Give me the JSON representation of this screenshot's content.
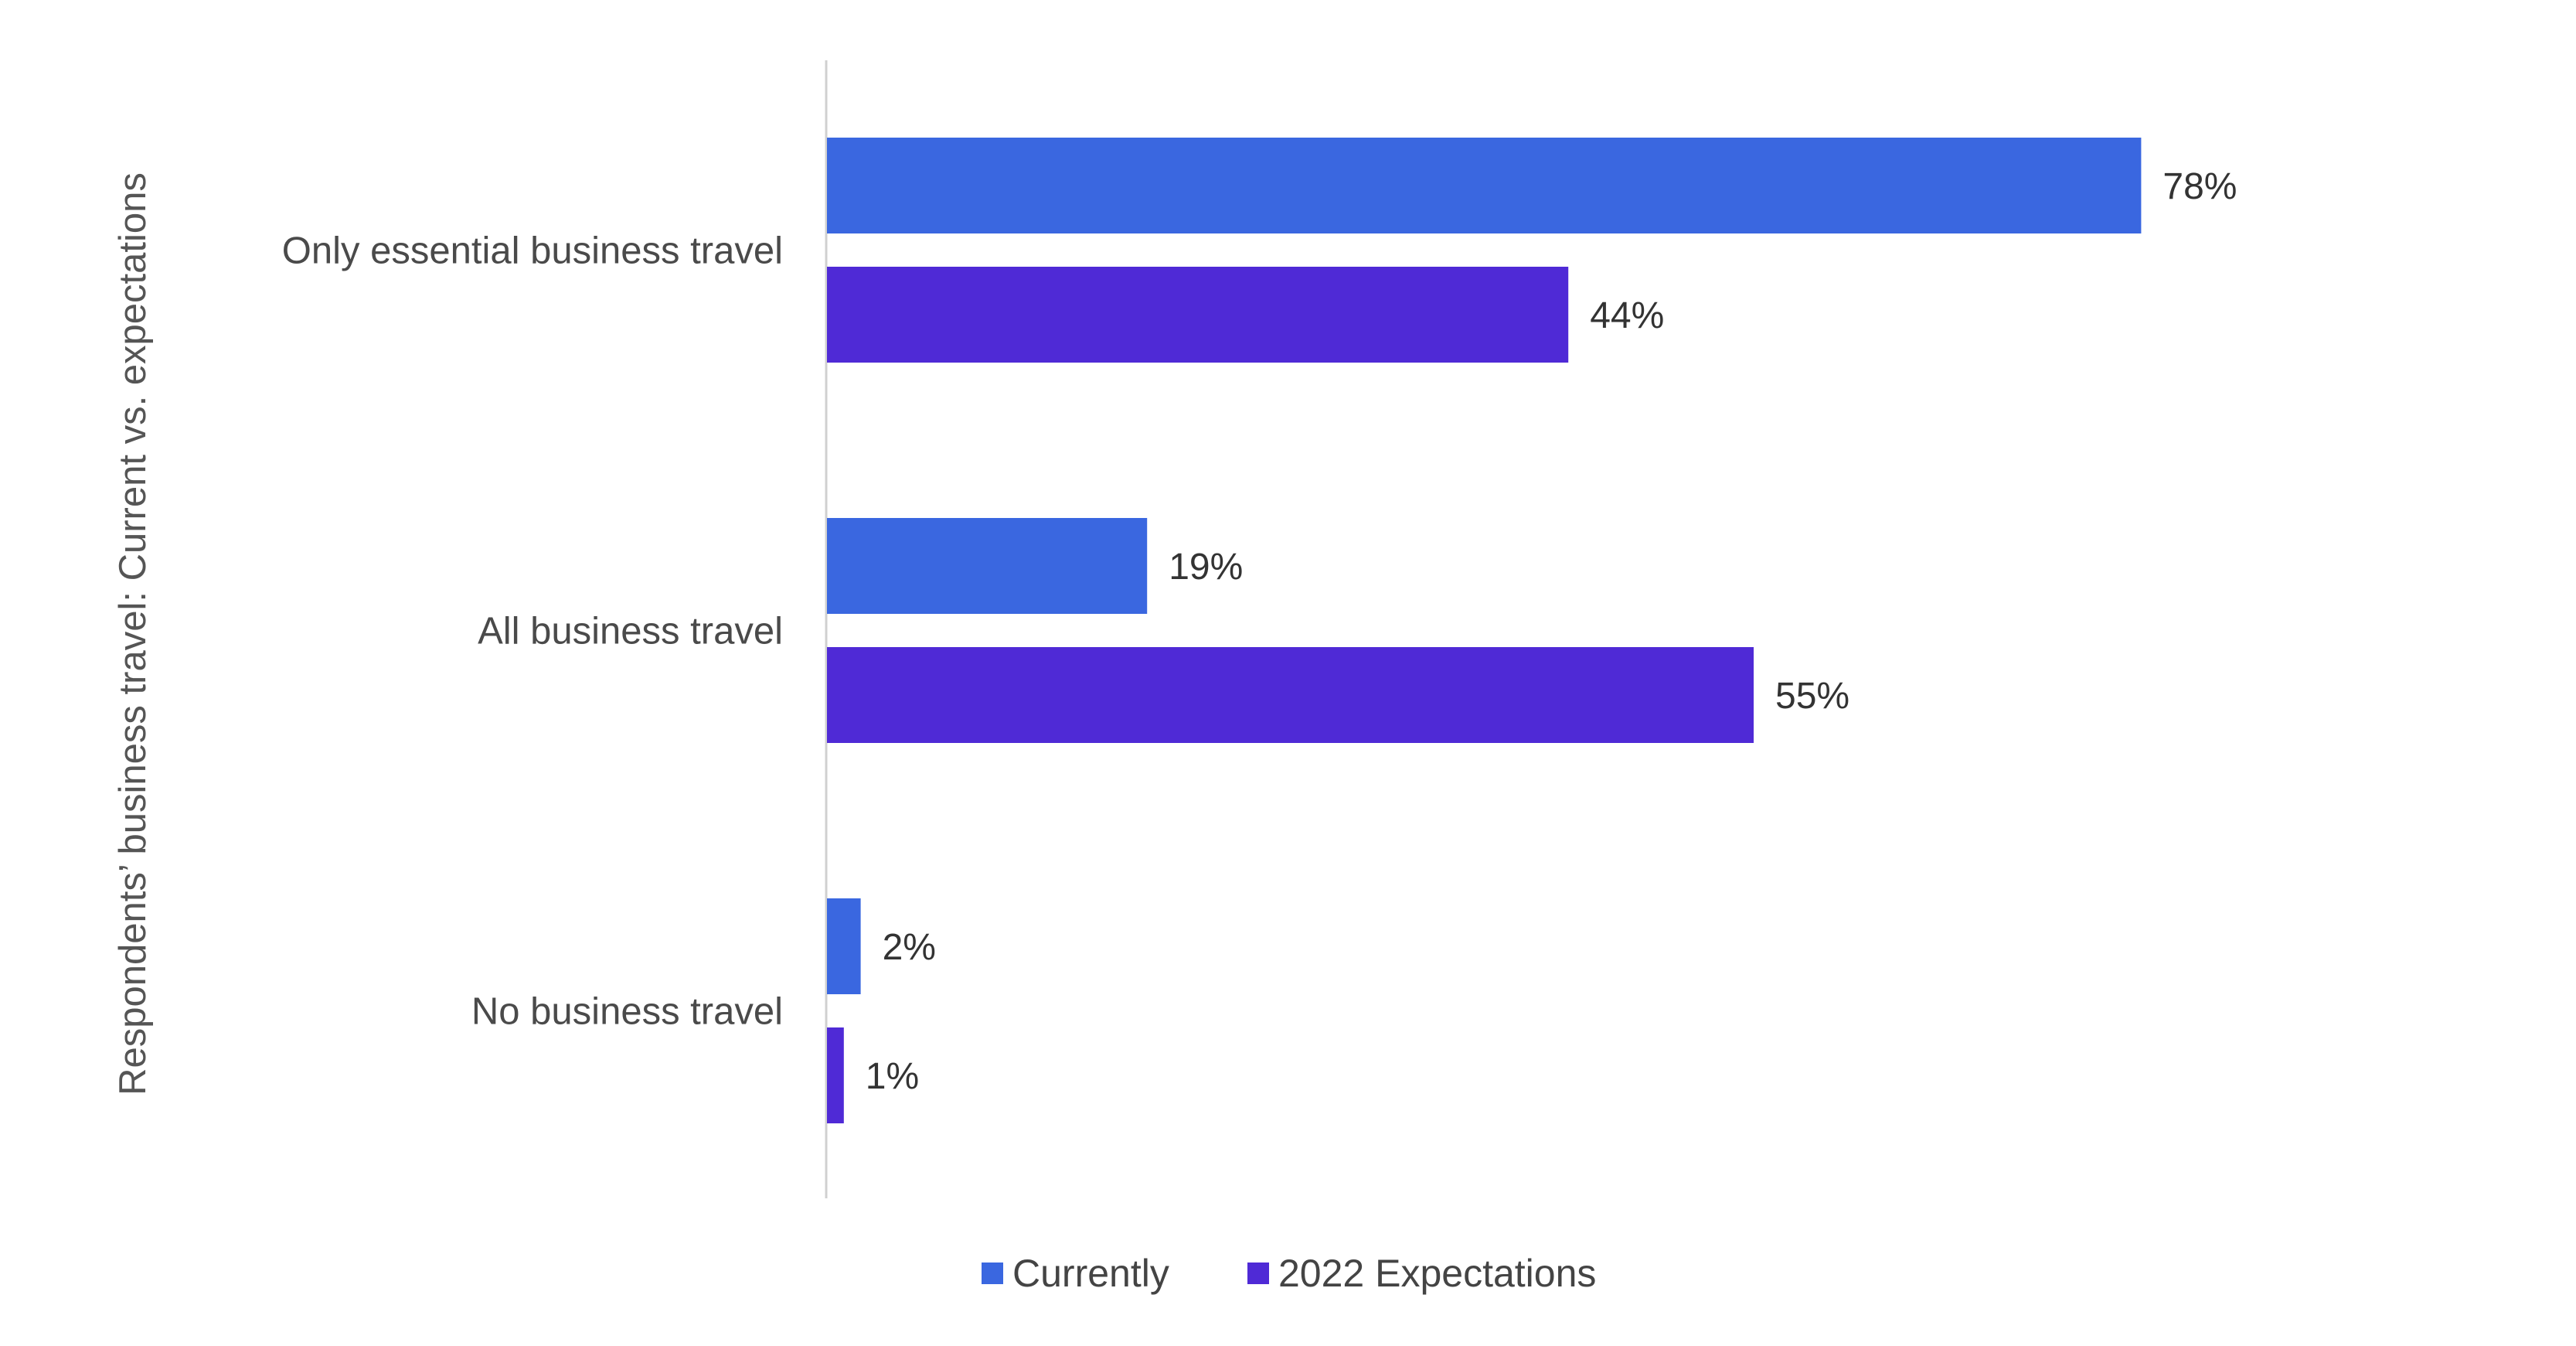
{
  "chart_data": {
    "type": "bar",
    "orientation": "horizontal",
    "ylabel": "Respondents’ business travel: Current vs. expectations",
    "xlabel": "",
    "categories": [
      "Only essential business travel",
      "All business travel",
      "No business travel"
    ],
    "series": [
      {
        "name": "Currently",
        "values": [
          78,
          19,
          2
        ],
        "labels": [
          "78%",
          "19%",
          "2%"
        ],
        "color": "#3a67e0"
      },
      {
        "name": "2022 Expectations",
        "values": [
          44,
          55,
          1
        ],
        "labels": [
          "44%",
          "55%",
          "1%"
        ],
        "color": "#4f2ad6"
      }
    ],
    "xlim": [
      0,
      100
    ],
    "grid": false,
    "legend_position": "bottom"
  }
}
